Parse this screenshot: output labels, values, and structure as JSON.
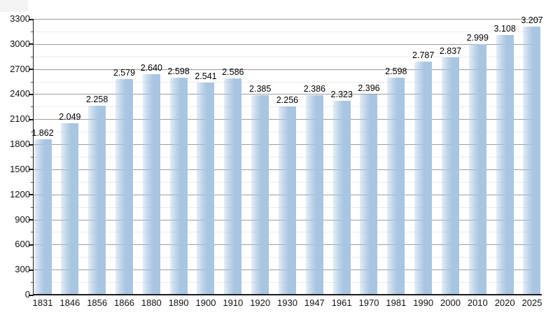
{
  "chart_data": {
    "type": "bar",
    "title": "",
    "xlabel": "",
    "ylabel": "",
    "categories": [
      "1831",
      "1846",
      "1856",
      "1866",
      "1880",
      "1890",
      "1900",
      "1910",
      "1920",
      "1930",
      "1947",
      "1961",
      "1970",
      "1981",
      "1990",
      "2000",
      "2010",
      "2020",
      "2025"
    ],
    "values": [
      1862,
      2049,
      2258,
      2579,
      2640,
      2598,
      2541,
      2586,
      2385,
      2256,
      2386,
      2323,
      2396,
      2598,
      2787,
      2837,
      2999,
      3108,
      3207
    ],
    "value_labels": [
      "1.862",
      "2.049",
      "2.258",
      "2.579",
      "2.640",
      "2.598",
      "2.541",
      "2.586",
      "2.385",
      "2.256",
      "2.386",
      "2.323",
      "2.396",
      "2.598",
      "2.787",
      "2.837",
      "2.999",
      "3.108",
      "3.207"
    ],
    "y_ticks": [
      0,
      300,
      600,
      900,
      1200,
      1500,
      1800,
      2100,
      2400,
      2700,
      3000,
      3300
    ],
    "y_tick_labels": [
      "0",
      "300",
      "600",
      "900",
      "1200",
      "1500",
      "1800",
      "2100",
      "2400",
      "2700",
      "3000",
      "3300"
    ],
    "ylim": [
      0,
      3300
    ],
    "y_major_step": 300,
    "y_minor_step": 150,
    "grid": "horizontal, major and minor lines on",
    "legend": "none",
    "colors": {
      "bar_fill": "#a8c5e2",
      "grid_major": "#9d9d9d",
      "grid_minor": "#ebebeb",
      "axis": "#1a1a1a",
      "text": "#111111",
      "background": "#ffffff",
      "corner_artifact": "#f4f4f4"
    }
  }
}
